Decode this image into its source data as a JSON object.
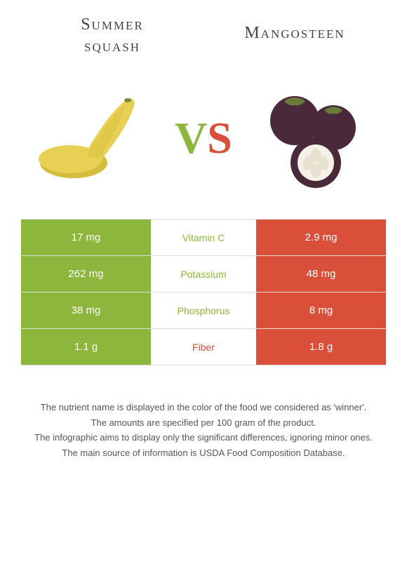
{
  "titles": {
    "left_line1": "Summer",
    "left_line2": "squash",
    "right": "Mangosteen"
  },
  "vs": {
    "v": "V",
    "s": "S"
  },
  "colors": {
    "left": "#8cb63c",
    "right": "#d94f3a",
    "row_border": "#dddddd",
    "text_white": "#ffffff"
  },
  "rows": [
    {
      "left": "17 mg",
      "label": "Vitamin C",
      "right": "2.9 mg",
      "winner": "left"
    },
    {
      "left": "262 mg",
      "label": "Potassium",
      "right": "48 mg",
      "winner": "left"
    },
    {
      "left": "38 mg",
      "label": "Phosphorus",
      "right": "8 mg",
      "winner": "left"
    },
    {
      "left": "1.1 g",
      "label": "Fiber",
      "right": "1.8 g",
      "winner": "right"
    }
  ],
  "footer": [
    "The nutrient name is displayed in the color of the food we considered as 'winner'.",
    "The amounts are specified per 100 gram of the product.",
    "The infographic aims to display only the significant differences, ignoring minor ones.",
    "The main source of information is USDA Food Composition Database."
  ]
}
